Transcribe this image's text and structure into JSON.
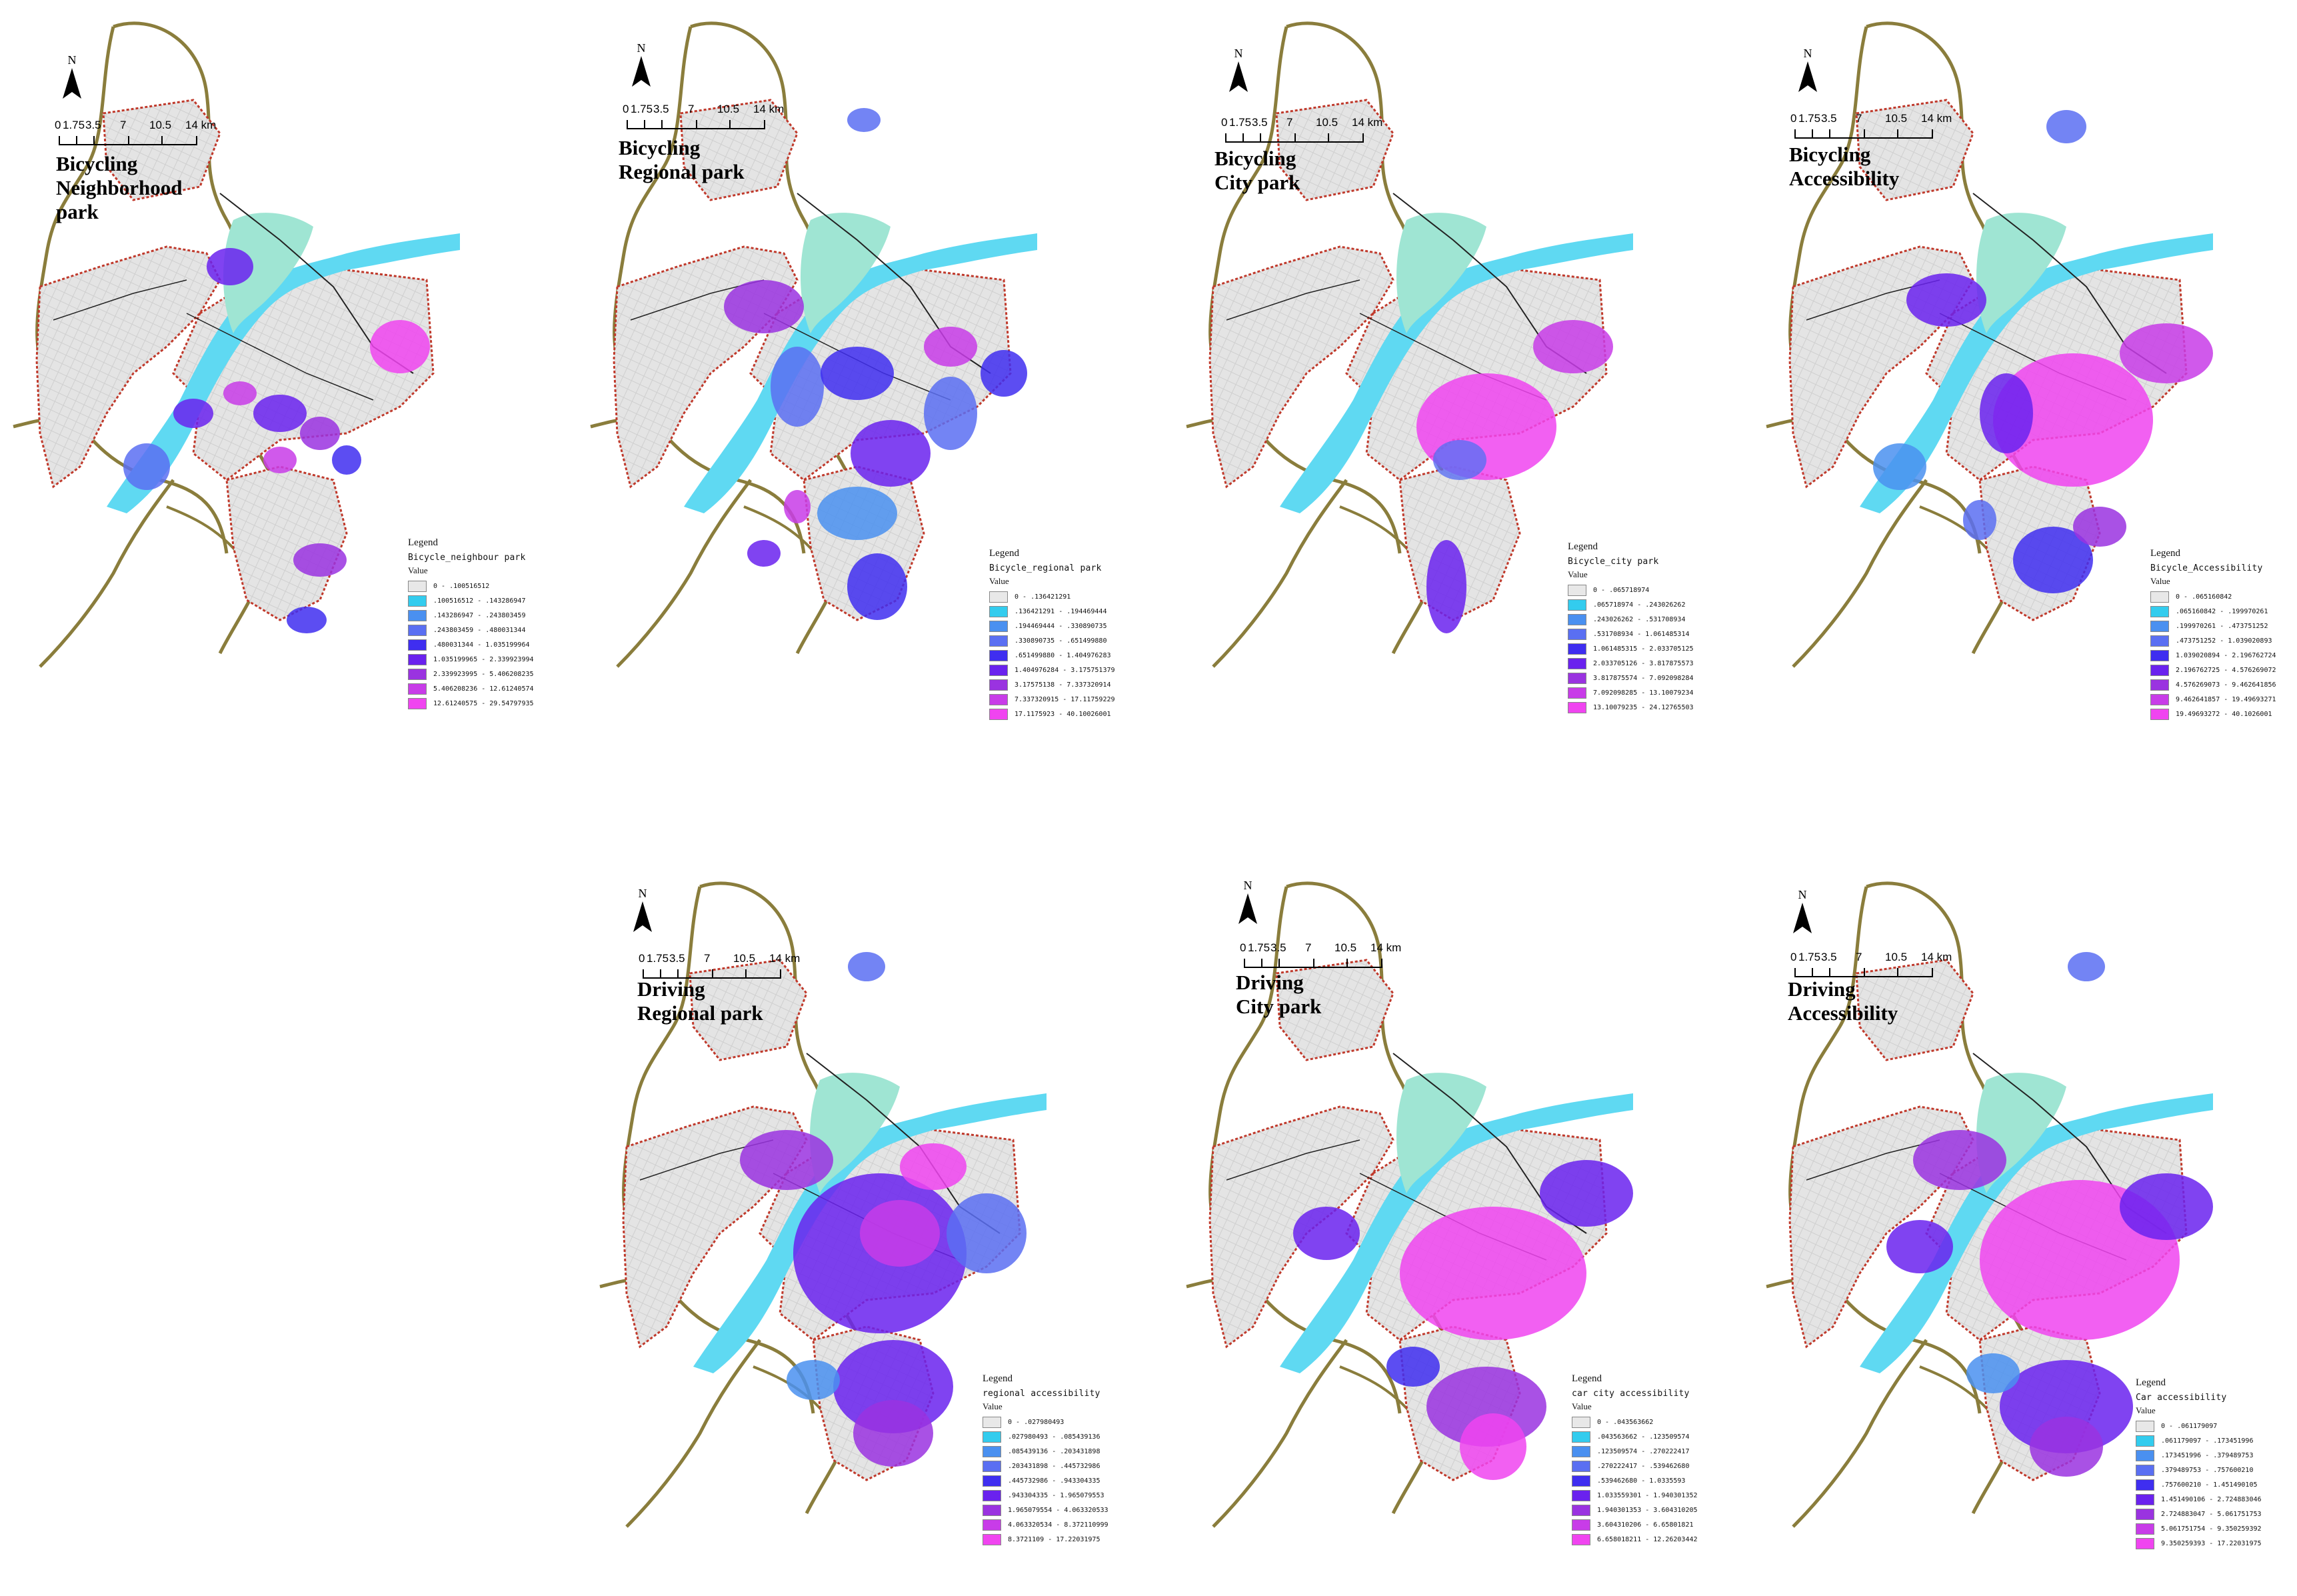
{
  "north_label": "N",
  "scale": {
    "ticks": [
      "0",
      "1.75",
      "3.5",
      "7",
      "10.5",
      "14 km"
    ]
  },
  "colors": {
    "district_fill": "#e6e6e6",
    "river": "#5fd9f2",
    "island": "#9fe5d3",
    "boundary": "#c0392b",
    "highway": "#8a7d3c",
    "rail": "#222222",
    "classes": [
      "#e8e8e8",
      "#33ccee",
      "#4a90f0",
      "#5a6ff2",
      "#3f2ef0",
      "#6a22ee",
      "#9a33e0",
      "#c83ce8",
      "#f044f0"
    ]
  },
  "panels": [
    {
      "id": "bicycling-neighborhood-park",
      "title": [
        "Bicycling",
        "Neighborhood",
        "park"
      ],
      "legend": {
        "title": "Legend",
        "layer": "Bicycle_neighbour park",
        "value_label": "Value",
        "classes": [
          "0 - .100516512",
          ".100516512 - .143286947",
          ".143286947 - .243803459",
          ".243803459 - .480031344",
          ".480031344 - 1.035199964",
          "1.035199965 - 2.339923994",
          "2.339923995 - 5.406208235",
          "5.406208236 - 12.61240574",
          "12.61240575 - 29.54797935"
        ]
      }
    },
    {
      "id": "bicycling-regional-park",
      "title": [
        "Bicycling",
        "Regional park"
      ],
      "legend": {
        "title": "Legend",
        "layer": "Bicycle_regional park",
        "value_label": "Value",
        "classes": [
          "0 - .136421291",
          ".136421291 - .194469444",
          ".194469444 - .330890735",
          ".330890735 - .651499880",
          ".651499880 - 1.404976283",
          "1.404976284 - 3.175751379",
          "3.17575138 - 7.337320914",
          "7.337320915 - 17.11759229",
          "17.1175923 - 40.10026001"
        ]
      }
    },
    {
      "id": "bicycling-city-park",
      "title": [
        "Bicycling",
        "City park"
      ],
      "legend": {
        "title": "Legend",
        "layer": "Bicycle_city park",
        "value_label": "Value",
        "classes": [
          "0 - .065718974",
          ".065718974 - .243026262",
          ".243026262 - .531708934",
          ".531708934 - 1.061485314",
          "1.061485315 - 2.033705125",
          "2.033705126 - 3.817875573",
          "3.817875574 - 7.092098284",
          "7.092098285 - 13.10079234",
          "13.10079235 - 24.12765503"
        ]
      }
    },
    {
      "id": "bicycling-accessibility",
      "title": [
        "Bicycling",
        "Accessibility"
      ],
      "legend": {
        "title": "Legend",
        "layer": "Bicycle_Accessibility",
        "value_label": "Value",
        "classes": [
          "0 - .065160842",
          ".065160842 - .199970261",
          ".199970261 - .473751252",
          ".473751252 - 1.039020893",
          "1.039020894 - 2.196762724",
          "2.196762725 - 4.576269072",
          "4.576269073 - 9.462641856",
          "9.462641857 - 19.49693271",
          "19.49693272 - 40.1026001"
        ]
      }
    },
    {
      "id": "driving-regional-park",
      "title": [
        "Driving",
        "Regional park"
      ],
      "legend": {
        "title": "Legend",
        "layer": "regional accessibility",
        "value_label": "Value",
        "classes": [
          "0 - .027980493",
          ".027980493 - .085439136",
          ".085439136 - .203431898",
          ".203431898 - .445732986",
          ".445732986 - .943304335",
          ".943304335 - 1.965079553",
          "1.965079554 - 4.063320533",
          "4.063320534 - 8.372110999",
          "8.3721109 - 17.22031975"
        ]
      }
    },
    {
      "id": "driving-city-park",
      "title": [
        "Driving",
        "City park"
      ],
      "legend": {
        "title": "Legend",
        "layer": "car city accessibility",
        "value_label": "Value",
        "classes": [
          "0 - .043563662",
          ".043563662 - .123509574",
          ".123509574 - .270222417",
          ".270222417 - .539462680",
          ".539462680 - 1.0335593",
          "1.033559301 - 1.940301352",
          "1.940301353 - 3.604310205",
          "3.604310206 - 6.65801821",
          "6.658018211 - 12.26203442"
        ]
      }
    },
    {
      "id": "driving-accessibility",
      "title": [
        "Driving",
        "Accessibility"
      ],
      "legend": {
        "title": "Legend",
        "layer": "Car accessibility",
        "value_label": "Value",
        "classes": [
          "0 - .061179097",
          ".061179097 - .173451996",
          ".173451996 - .379489753",
          ".379489753 - .757600210",
          ".757600210 - 1.451490105",
          "1.451490106 - 2.724883046",
          "2.724883047 - 5.061751753",
          "5.061751754 - 9.350259392",
          "9.350259393 - 17.22031975"
        ]
      }
    }
  ]
}
